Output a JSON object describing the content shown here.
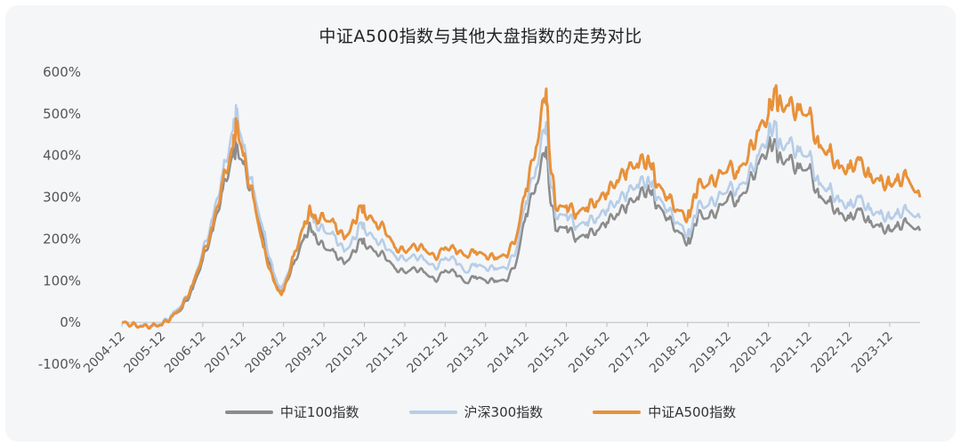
{
  "chart_data": {
    "type": "line",
    "title": "中证A500指数与其他大盘指数的走势对比",
    "ylim": [
      -100,
      600
    ],
    "y_ticks": [
      "600%",
      "500%",
      "400%",
      "300%",
      "200%",
      "100%",
      "0%",
      "-100%"
    ],
    "y_tick_values": [
      600,
      500,
      400,
      300,
      200,
      100,
      0,
      -100
    ],
    "x_ticks": [
      "2004-12",
      "2005-12",
      "2006-12",
      "2007-12",
      "2008-12",
      "2009-12",
      "2010-12",
      "2011-12",
      "2012-12",
      "2013-12",
      "2014-12",
      "2015-12",
      "2016-12",
      "2017-12",
      "2018-12",
      "2019-12",
      "2020-12",
      "2021-12",
      "2022-12",
      "2023-12"
    ],
    "x_range": [
      "2004-12",
      "2024-09"
    ],
    "grid": false,
    "legend_position": "bottom",
    "x": [
      "2004-12",
      "2005-03",
      "2005-06",
      "2005-09",
      "2005-12",
      "2006-03",
      "2006-06",
      "2006-09",
      "2006-12",
      "2007-03",
      "2007-06",
      "2007-09",
      "2007-10",
      "2007-12",
      "2008-03",
      "2008-06",
      "2008-09",
      "2008-11",
      "2008-12",
      "2009-03",
      "2009-06",
      "2009-08",
      "2009-09",
      "2009-12",
      "2010-03",
      "2010-06",
      "2010-09",
      "2010-11",
      "2010-12",
      "2011-03",
      "2011-06",
      "2011-09",
      "2011-12",
      "2012-03",
      "2012-06",
      "2012-09",
      "2012-12",
      "2013-03",
      "2013-06",
      "2013-09",
      "2013-12",
      "2014-03",
      "2014-06",
      "2014-09",
      "2014-12",
      "2015-03",
      "2015-06",
      "2015-07",
      "2015-09",
      "2015-12",
      "2016-03",
      "2016-06",
      "2016-09",
      "2016-12",
      "2017-03",
      "2017-06",
      "2017-09",
      "2017-12",
      "2018-01",
      "2018-03",
      "2018-06",
      "2018-09",
      "2018-12",
      "2019-01",
      "2019-03",
      "2019-06",
      "2019-09",
      "2019-12",
      "2020-03",
      "2020-06",
      "2020-09",
      "2020-12",
      "2021-02",
      "2021-03",
      "2021-06",
      "2021-09",
      "2021-12",
      "2022-03",
      "2022-06",
      "2022-09",
      "2022-12",
      "2023-03",
      "2023-06",
      "2023-09",
      "2023-12",
      "2024-02",
      "2024-05",
      "2024-09"
    ],
    "series": [
      {
        "name": "中证100指数",
        "color": "#8c8c8c",
        "values": [
          0,
          -5,
          -10,
          -8,
          -5,
          15,
          35,
          80,
          150,
          220,
          320,
          400,
          420,
          380,
          300,
          200,
          110,
          75,
          80,
          140,
          200,
          230,
          210,
          180,
          170,
          140,
          170,
          200,
          190,
          170,
          160,
          130,
          120,
          130,
          120,
          100,
          125,
          120,
          95,
          110,
          100,
          100,
          100,
          140,
          260,
          330,
          420,
          310,
          220,
          230,
          200,
          210,
          220,
          240,
          260,
          280,
          300,
          320,
          315,
          280,
          250,
          220,
          190,
          200,
          260,
          250,
          270,
          300,
          290,
          330,
          380,
          420,
          435,
          390,
          390,
          370,
          370,
          300,
          290,
          260,
          250,
          270,
          240,
          230,
          220,
          230,
          240,
          220
        ]
      },
      {
        "name": "沪深300指数",
        "color": "#b7cde7",
        "values": [
          0,
          -5,
          -8,
          -6,
          -2,
          20,
          45,
          90,
          170,
          250,
          360,
          460,
          510,
          420,
          320,
          220,
          120,
          80,
          90,
          160,
          230,
          270,
          240,
          220,
          210,
          170,
          200,
          240,
          225,
          200,
          185,
          160,
          150,
          160,
          150,
          130,
          155,
          150,
          120,
          140,
          130,
          130,
          130,
          170,
          290,
          370,
          480,
          360,
          250,
          260,
          230,
          240,
          250,
          270,
          290,
          310,
          330,
          340,
          335,
          300,
          270,
          240,
          210,
          220,
          280,
          280,
          300,
          320,
          320,
          350,
          400,
          450,
          480,
          420,
          430,
          410,
          400,
          330,
          320,
          290,
          280,
          300,
          270,
          260,
          250,
          260,
          270,
          250
        ]
      },
      {
        "name": "中证A500指数",
        "color": "#e8913a",
        "values": [
          0,
          -5,
          -10,
          -8,
          -5,
          15,
          40,
          90,
          160,
          230,
          340,
          420,
          480,
          400,
          300,
          180,
          100,
          70,
          75,
          160,
          230,
          270,
          250,
          250,
          240,
          200,
          240,
          280,
          265,
          240,
          225,
          180,
          170,
          185,
          175,
          155,
          180,
          175,
          160,
          170,
          160,
          155,
          160,
          200,
          320,
          420,
          560,
          400,
          270,
          280,
          260,
          275,
          290,
          310,
          340,
          365,
          380,
          390,
          380,
          330,
          300,
          270,
          250,
          270,
          330,
          330,
          350,
          370,
          360,
          400,
          460,
          500,
          560,
          520,
          520,
          510,
          500,
          420,
          410,
          370,
          370,
          390,
          350,
          340,
          330,
          340,
          350,
          300
        ]
      }
    ]
  }
}
